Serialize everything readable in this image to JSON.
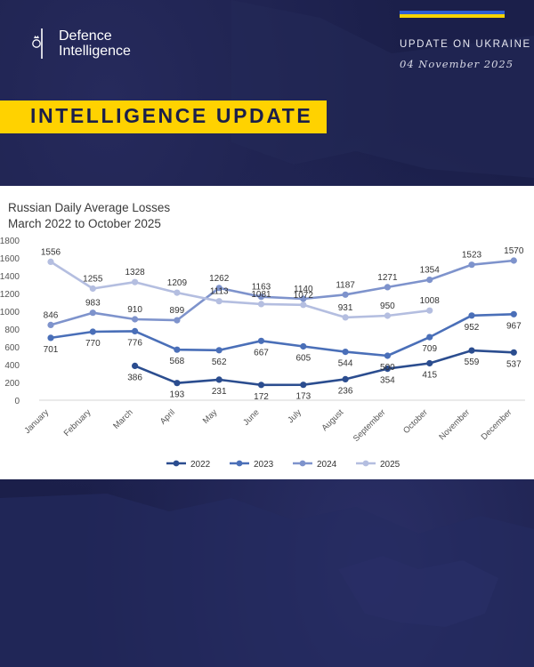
{
  "header": {
    "logo_line1": "Defence",
    "logo_line2": "Intelligence",
    "update_label": "UPDATE ON UKRAINE",
    "date": "04 November 2025",
    "banner": "INTELLIGENCE UPDATE"
  },
  "colors": {
    "background": "#1b1f4a",
    "banner": "#ffd200",
    "flag_blue": "#2f5fd0",
    "flag_yellow": "#f5d400",
    "s2022": "#2b4d8f",
    "s2023": "#4a6fb8",
    "s2024": "#7e93cc",
    "s2025": "#b4bee0"
  },
  "chart_data": {
    "type": "line",
    "title": "Russian Daily Average Losses",
    "subtitle": "March 2022 to October 2025",
    "categories": [
      "January",
      "February",
      "March",
      "April",
      "May",
      "June",
      "July",
      "August",
      "September",
      "October",
      "November",
      "December"
    ],
    "ylim": [
      0,
      1800
    ],
    "yticks": [
      0,
      200,
      400,
      600,
      800,
      1000,
      1200,
      1400,
      1600,
      1800
    ],
    "grid": false,
    "legend_position": "bottom",
    "series": [
      {
        "name": "2022",
        "color": "#2b4d8f",
        "values": [
          null,
          null,
          386,
          193,
          231,
          172,
          173,
          236,
          354,
          415,
          559,
          537
        ]
      },
      {
        "name": "2023",
        "color": "#4a6fb8",
        "values": [
          701,
          770,
          776,
          568,
          562,
          667,
          605,
          544,
          500,
          709,
          952,
          967
        ]
      },
      {
        "name": "2024",
        "color": "#7e93cc",
        "values": [
          846,
          983,
          910,
          899,
          1262,
          1163,
          1140,
          1187,
          1271,
          1354,
          1523,
          1570
        ]
      },
      {
        "name": "2025",
        "color": "#b4bee0",
        "values": [
          1556,
          1255,
          1328,
          1209,
          1113,
          1081,
          1072,
          931,
          950,
          1008,
          null,
          null
        ]
      }
    ]
  }
}
